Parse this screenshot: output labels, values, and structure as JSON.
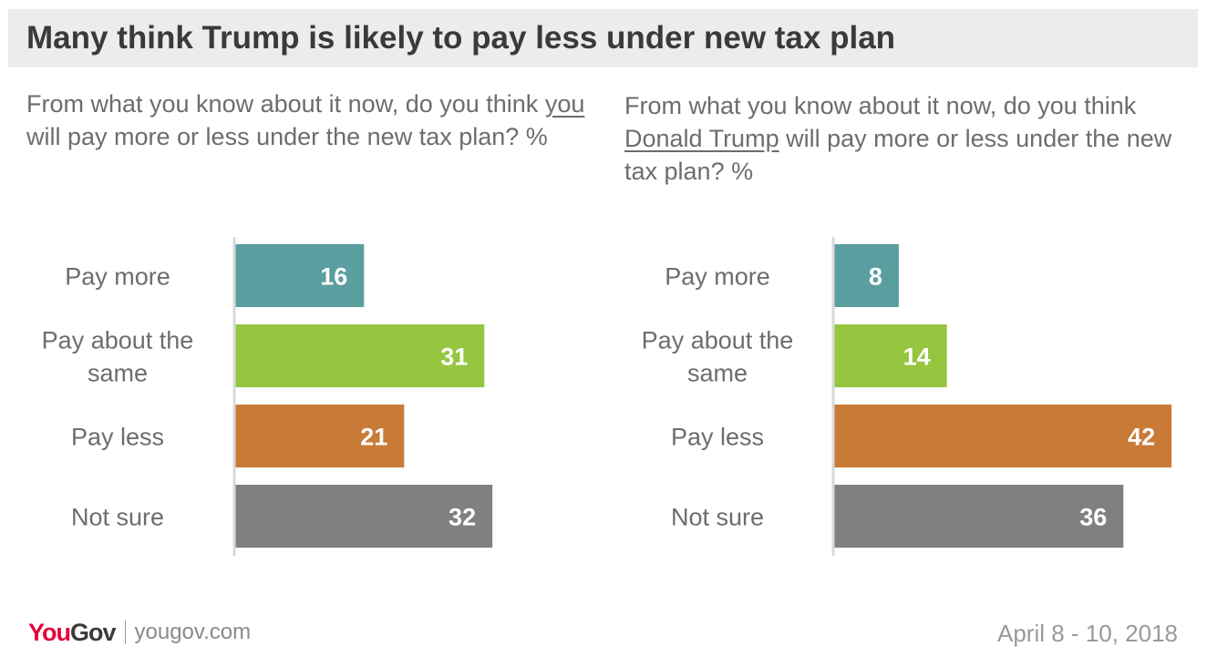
{
  "title": "Many think Trump is likely to pay less under new tax plan",
  "footer": {
    "logo_you": "You",
    "logo_gov": "Gov",
    "site": "yougov.com",
    "date": "April 8 - 10, 2018"
  },
  "colors": {
    "Pay more": "#5b9ea0",
    "Pay about the same": "#96c540",
    "Pay less": "#c97a36",
    "Not sure": "#808080",
    "brand_red": "#e4003b"
  },
  "chart_data": [
    {
      "type": "bar",
      "orientation": "horizontal",
      "question": {
        "before": "From what you know about it now, do you think ",
        "underlined": "you",
        "after": " will pay more or less under the new tax plan? %"
      },
      "categories": [
        "Pay more",
        "Pay about the same",
        "Pay less",
        "Not sure"
      ],
      "category_lines": [
        [
          "Pay more"
        ],
        [
          "Pay about the",
          "same"
        ],
        [
          "Pay less"
        ],
        [
          "Not sure"
        ]
      ],
      "values": [
        16,
        31,
        21,
        32
      ],
      "xlim": [
        0,
        42
      ],
      "grid": false,
      "legend": "none"
    },
    {
      "type": "bar",
      "orientation": "horizontal",
      "question": {
        "before": "From what you know about it now, do you think ",
        "underlined": "Donald Trump",
        "after": " will pay more or less under the new tax plan? %"
      },
      "categories": [
        "Pay more",
        "Pay about the same",
        "Pay less",
        "Not sure"
      ],
      "category_lines": [
        [
          "Pay more"
        ],
        [
          "Pay about the",
          "same"
        ],
        [
          "Pay less"
        ],
        [
          "Not sure"
        ]
      ],
      "values": [
        8,
        14,
        42,
        36
      ],
      "xlim": [
        0,
        42
      ],
      "grid": false,
      "legend": "none"
    }
  ]
}
